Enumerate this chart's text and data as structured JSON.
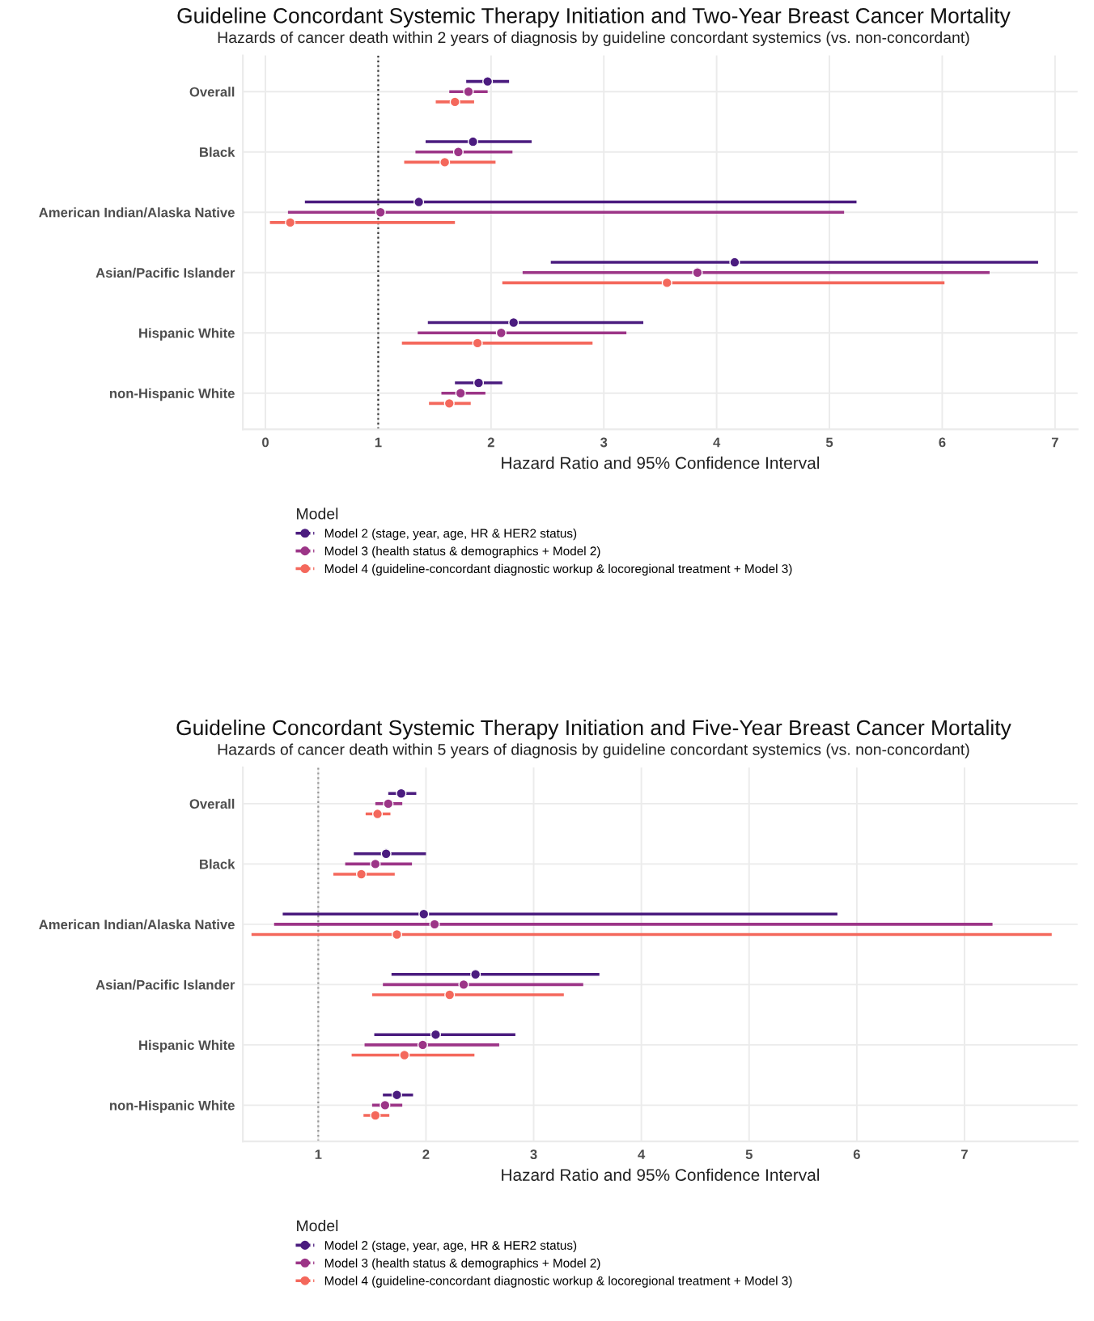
{
  "chart_data": [
    {
      "type": "scatter",
      "orientation": "horizontal",
      "title": "Guideline Concordant Systemic Therapy Initiation and Two-Year Breast Cancer Mortality",
      "subtitle": "Hazards of cancer death within 2 years of diagnosis by guideline concordant systemics (vs. non-concordant)",
      "xlabel": "Hazard Ratio and 95% Confidence Interval",
      "legend_title": "Model",
      "legend": "bottom",
      "grid": true,
      "marker": "circle",
      "categories": [
        "Overall",
        "Black",
        "American Indian/Alaska Native",
        "Asian/Pacific Islander",
        "Hispanic White",
        "non-Hispanic White"
      ],
      "xlim": [
        -0.2,
        7.2
      ],
      "xticks": [
        0,
        1,
        2,
        3,
        4,
        5,
        6,
        7
      ],
      "ref_lines": [
        {
          "axis": "x",
          "value": 1,
          "line_style": "dotted",
          "color": "#333333"
        }
      ],
      "series": [
        {
          "name": "Model 2 (stage, year, age, HR & HER2 status)",
          "color": "#4b1c7f",
          "values": [
            1.97,
            1.84,
            1.36,
            4.16,
            2.2,
            1.89
          ],
          "errors": [
            [
              1.78,
              2.16
            ],
            [
              1.42,
              2.36
            ],
            [
              0.35,
              5.24
            ],
            [
              2.53,
              6.85
            ],
            [
              1.44,
              3.35
            ],
            [
              1.68,
              2.1
            ]
          ]
        },
        {
          "name": "Model 3 (health status & demographics + Model 2)",
          "color": "#9c3587",
          "values": [
            1.8,
            1.71,
            1.02,
            3.83,
            2.09,
            1.73
          ],
          "errors": [
            [
              1.63,
              1.97
            ],
            [
              1.33,
              2.19
            ],
            [
              0.2,
              5.13
            ],
            [
              2.28,
              6.42
            ],
            [
              1.35,
              3.2
            ],
            [
              1.56,
              1.95
            ]
          ]
        },
        {
          "name": "Model 4 (guideline-concordant diagnostic workup & locoregional treatment + Model 3)",
          "color": "#f4685c",
          "values": [
            1.68,
            1.59,
            0.22,
            3.56,
            1.88,
            1.63
          ],
          "errors": [
            [
              1.51,
              1.85
            ],
            [
              1.23,
              2.04
            ],
            [
              0.04,
              1.68
            ],
            [
              2.1,
              6.02
            ],
            [
              1.21,
              2.9
            ],
            [
              1.45,
              1.82
            ]
          ]
        }
      ]
    },
    {
      "type": "scatter",
      "orientation": "horizontal",
      "title": "Guideline Concordant Systemic Therapy Initiation and Five-Year Breast Cancer Mortality",
      "subtitle": "Hazards of cancer death within 5 years of diagnosis by guideline concordant systemics (vs. non-concordant)",
      "xlabel": "Hazard Ratio and 95% Confidence Interval",
      "legend_title": "Model",
      "legend": "bottom",
      "grid": true,
      "marker": "circle",
      "categories": [
        "Overall",
        "Black",
        "American Indian/Alaska Native",
        "Asian/Pacific Islander",
        "Hispanic White",
        "non-Hispanic White"
      ],
      "xlim": [
        0.3,
        8.05
      ],
      "xticks": [
        1,
        2,
        3,
        4,
        5,
        6,
        7
      ],
      "ref_lines": [
        {
          "axis": "x",
          "value": 1,
          "line_style": "dotted",
          "color": "#999999"
        }
      ],
      "series": [
        {
          "name": "Model 2 (stage, year, age, HR & HER2 status)",
          "color": "#4b1c7f",
          "values": [
            1.77,
            1.63,
            1.98,
            2.46,
            2.09,
            1.73
          ],
          "errors": [
            [
              1.65,
              1.91
            ],
            [
              1.33,
              2.0
            ],
            [
              0.67,
              5.82
            ],
            [
              1.68,
              3.61
            ],
            [
              1.52,
              2.83
            ],
            [
              1.6,
              1.88
            ]
          ]
        },
        {
          "name": "Model 3 (health status & demographics + Model 2)",
          "color": "#9c3587",
          "values": [
            1.65,
            1.53,
            2.08,
            2.35,
            1.97,
            1.62
          ],
          "errors": [
            [
              1.53,
              1.78
            ],
            [
              1.25,
              1.87
            ],
            [
              0.59,
              7.26
            ],
            [
              1.6,
              3.46
            ],
            [
              1.43,
              2.68
            ],
            [
              1.5,
              1.78
            ]
          ]
        },
        {
          "name": "Model 4 (guideline-concordant diagnostic workup & locoregional treatment + Model 3)",
          "color": "#f4685c",
          "values": [
            1.55,
            1.4,
            1.73,
            2.22,
            1.8,
            1.53
          ],
          "errors": [
            [
              1.44,
              1.67
            ],
            [
              1.14,
              1.71
            ],
            [
              0.38,
              7.81
            ],
            [
              1.5,
              3.28
            ],
            [
              1.31,
              2.45
            ],
            [
              1.42,
              1.66
            ]
          ]
        }
      ]
    }
  ]
}
